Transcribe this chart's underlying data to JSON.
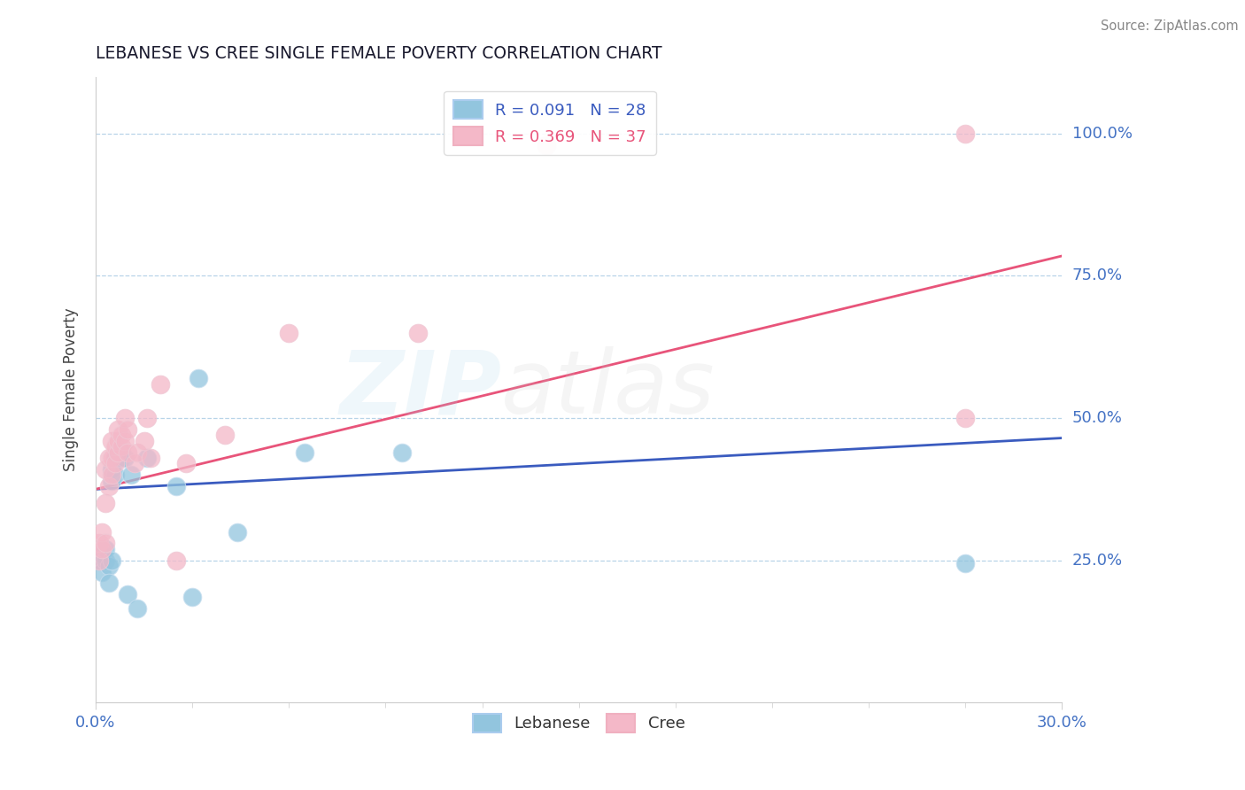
{
  "title": "LEBANESE VS CREE SINGLE FEMALE POVERTY CORRELATION CHART",
  "source": "Source: ZipAtlas.com",
  "ylabel": "Single Female Poverty",
  "xlim": [
    0.0,
    0.3
  ],
  "ylim": [
    0.0,
    1.1
  ],
  "ytick_values": [
    0.25,
    0.5,
    0.75,
    1.0
  ],
  "ytick_labels": [
    "25.0%",
    "50.0%",
    "75.0%",
    "100.0%"
  ],
  "lebanese_color": "#92c5de",
  "cree_color": "#f4b8c8",
  "lebanese_line_color": "#3a5bbf",
  "cree_line_color": "#e8547a",
  "R_lebanese": 0.091,
  "N_lebanese": 28,
  "R_cree": 0.369,
  "N_cree": 37,
  "leb_line_x0": 0.0,
  "leb_line_y0": 0.375,
  "leb_line_x1": 0.3,
  "leb_line_y1": 0.465,
  "cree_line_x0": 0.0,
  "cree_line_y0": 0.375,
  "cree_line_x1": 0.3,
  "cree_line_y1": 0.785,
  "lebanese_x": [
    0.001,
    0.002,
    0.002,
    0.003,
    0.003,
    0.004,
    0.004,
    0.005,
    0.005,
    0.005,
    0.006,
    0.006,
    0.007,
    0.007,
    0.008,
    0.008,
    0.009,
    0.01,
    0.011,
    0.013,
    0.016,
    0.025,
    0.03,
    0.032,
    0.044,
    0.065,
    0.095,
    0.27
  ],
  "lebanese_y": [
    0.25,
    0.26,
    0.23,
    0.25,
    0.27,
    0.24,
    0.21,
    0.25,
    0.39,
    0.41,
    0.4,
    0.43,
    0.44,
    0.43,
    0.44,
    0.43,
    0.43,
    0.19,
    0.4,
    0.165,
    0.43,
    0.38,
    0.185,
    0.57,
    0.3,
    0.44,
    0.44,
    0.245
  ],
  "cree_x": [
    0.001,
    0.001,
    0.002,
    0.002,
    0.003,
    0.003,
    0.003,
    0.004,
    0.004,
    0.005,
    0.005,
    0.005,
    0.006,
    0.006,
    0.007,
    0.007,
    0.007,
    0.008,
    0.008,
    0.009,
    0.009,
    0.01,
    0.01,
    0.012,
    0.013,
    0.015,
    0.016,
    0.017,
    0.02,
    0.025,
    0.028,
    0.04,
    0.06,
    0.1,
    0.14,
    0.27,
    0.27
  ],
  "cree_y": [
    0.25,
    0.28,
    0.27,
    0.3,
    0.28,
    0.35,
    0.41,
    0.38,
    0.43,
    0.4,
    0.43,
    0.46,
    0.42,
    0.45,
    0.44,
    0.46,
    0.48,
    0.45,
    0.47,
    0.5,
    0.46,
    0.44,
    0.48,
    0.42,
    0.44,
    0.46,
    0.5,
    0.43,
    0.56,
    0.25,
    0.42,
    0.47,
    0.65,
    0.65,
    0.98,
    0.5,
    1.0
  ]
}
